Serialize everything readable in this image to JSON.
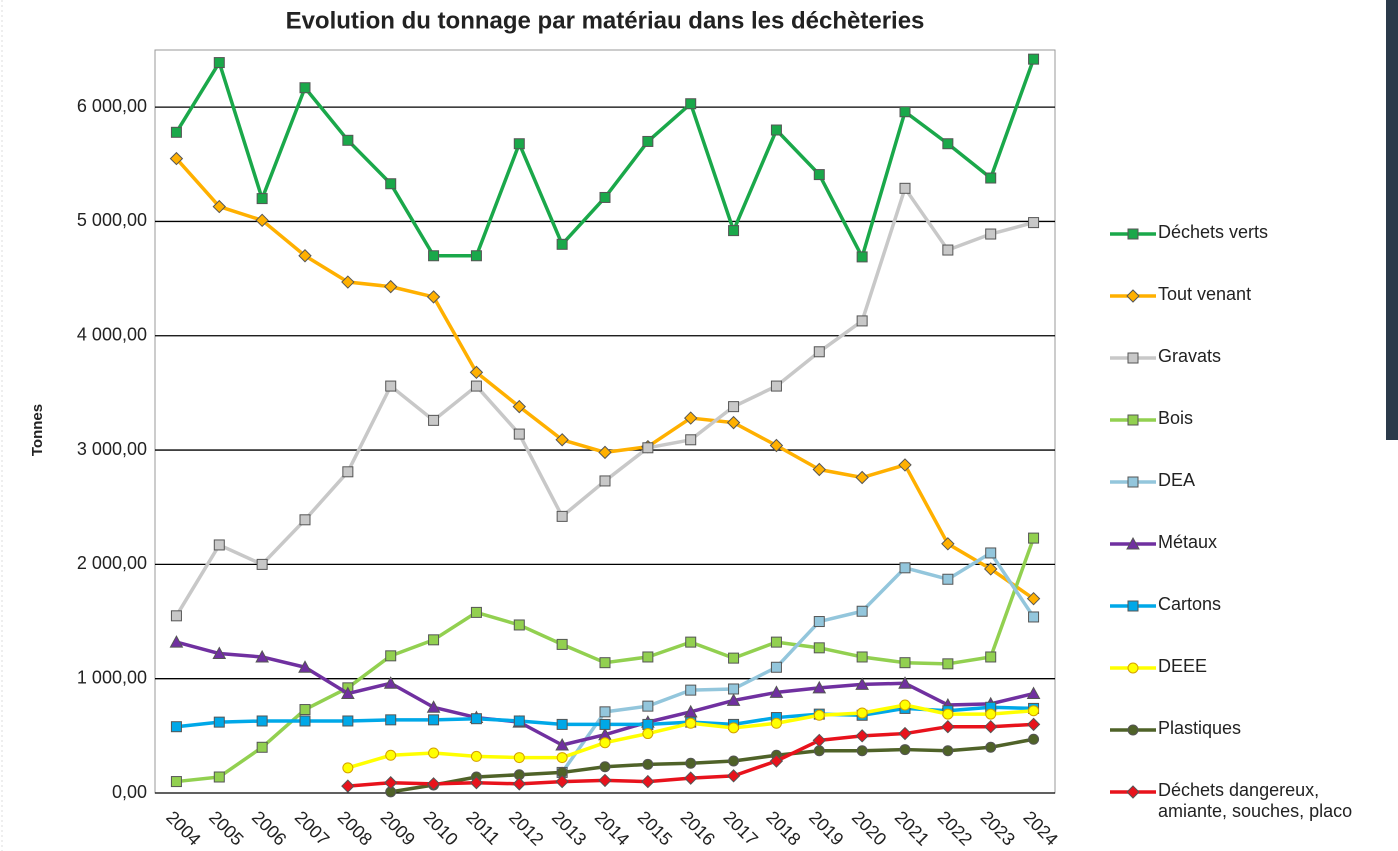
{
  "chart_data": {
    "type": "line",
    "title": "Evolution du tonnage par matériau dans les déchèteries",
    "y_label": "Tonnes",
    "categories": [
      "2004",
      "2005",
      "2006",
      "2007",
      "2008",
      "2009",
      "2010",
      "2011",
      "2012",
      "2013",
      "2014",
      "2015",
      "2016",
      "2017",
      "2018",
      "2019",
      "2020",
      "2021",
      "2022",
      "2023",
      "2024"
    ],
    "ylim": [
      0,
      6500
    ],
    "yticks": [
      {
        "value": 0,
        "label": "0,00"
      },
      {
        "value": 1000,
        "label": "1 000,00"
      },
      {
        "value": 2000,
        "label": "2 000,00"
      },
      {
        "value": 3000,
        "label": "3 000,00"
      },
      {
        "value": 4000,
        "label": "4 000,00"
      },
      {
        "value": 5000,
        "label": "5 000,00"
      },
      {
        "value": 6000,
        "label": "6 000,00"
      }
    ],
    "grid": true,
    "legend": "right",
    "series": [
      {
        "name": "Déchets verts",
        "color": "#1aa84a",
        "marker": "square",
        "values": [
          5780,
          6390,
          5200,
          6170,
          5710,
          5330,
          4700,
          4700,
          5680,
          4800,
          5210,
          5700,
          6030,
          4920,
          5800,
          5410,
          4690,
          5960,
          5680,
          5380,
          6420
        ]
      },
      {
        "name": "Tout venant",
        "color": "#ffb000",
        "marker": "diamond",
        "values": [
          5550,
          5130,
          5010,
          4700,
          4470,
          4430,
          4340,
          3680,
          3380,
          3090,
          2980,
          3030,
          3280,
          3240,
          3040,
          2830,
          2760,
          2870,
          2180,
          1960,
          1700
        ]
      },
      {
        "name": "Gravats",
        "color": "#c8c8c8",
        "marker": "square",
        "values": [
          1550,
          2170,
          2000,
          2390,
          2810,
          3560,
          3260,
          3560,
          3140,
          2420,
          2730,
          3020,
          3090,
          3380,
          3560,
          3860,
          4130,
          5290,
          4750,
          4890,
          4990
        ]
      },
      {
        "name": "Bois",
        "color": "#92d050",
        "marker": "square",
        "values": [
          100,
          140,
          400,
          730,
          920,
          1200,
          1340,
          1580,
          1470,
          1300,
          1140,
          1190,
          1320,
          1180,
          1320,
          1270,
          1190,
          1140,
          1130,
          1190,
          2230
        ]
      },
      {
        "name": "DEA",
        "color": "#93c6dc",
        "marker": "square",
        "values": [
          null,
          null,
          null,
          null,
          null,
          null,
          null,
          null,
          null,
          180,
          710,
          760,
          900,
          910,
          1100,
          1500,
          1590,
          1970,
          1870,
          2100,
          1540
        ]
      },
      {
        "name": "Métaux",
        "color": "#7030a0",
        "marker": "triangle",
        "values": [
          1320,
          1220,
          1190,
          1100,
          870,
          960,
          750,
          660,
          620,
          420,
          510,
          620,
          710,
          810,
          880,
          920,
          950,
          960,
          770,
          780,
          870
        ]
      },
      {
        "name": "Cartons",
        "color": "#00a8e8",
        "marker": "square",
        "values": [
          580,
          620,
          630,
          630,
          630,
          640,
          640,
          650,
          630,
          600,
          600,
          600,
          620,
          600,
          660,
          690,
          680,
          740,
          720,
          750,
          740
        ]
      },
      {
        "name": "DEEE",
        "color": "#ffff00",
        "marker": "circle",
        "values": [
          null,
          null,
          null,
          null,
          220,
          330,
          350,
          320,
          310,
          310,
          440,
          520,
          610,
          570,
          610,
          680,
          700,
          770,
          690,
          690,
          720
        ]
      },
      {
        "name": "Plastiques",
        "color": "#4f6228",
        "marker": "circle",
        "values": [
          null,
          null,
          null,
          null,
          null,
          10,
          70,
          140,
          160,
          180,
          230,
          250,
          260,
          280,
          330,
          370,
          370,
          380,
          370,
          400,
          470
        ]
      },
      {
        "name": "Déchets dangereux, amiante, souches, placo",
        "color": "#e8121c",
        "marker": "diamond",
        "values": [
          null,
          null,
          null,
          null,
          60,
          90,
          80,
          90,
          80,
          100,
          110,
          100,
          130,
          150,
          280,
          460,
          500,
          520,
          580,
          580,
          600
        ]
      }
    ]
  }
}
